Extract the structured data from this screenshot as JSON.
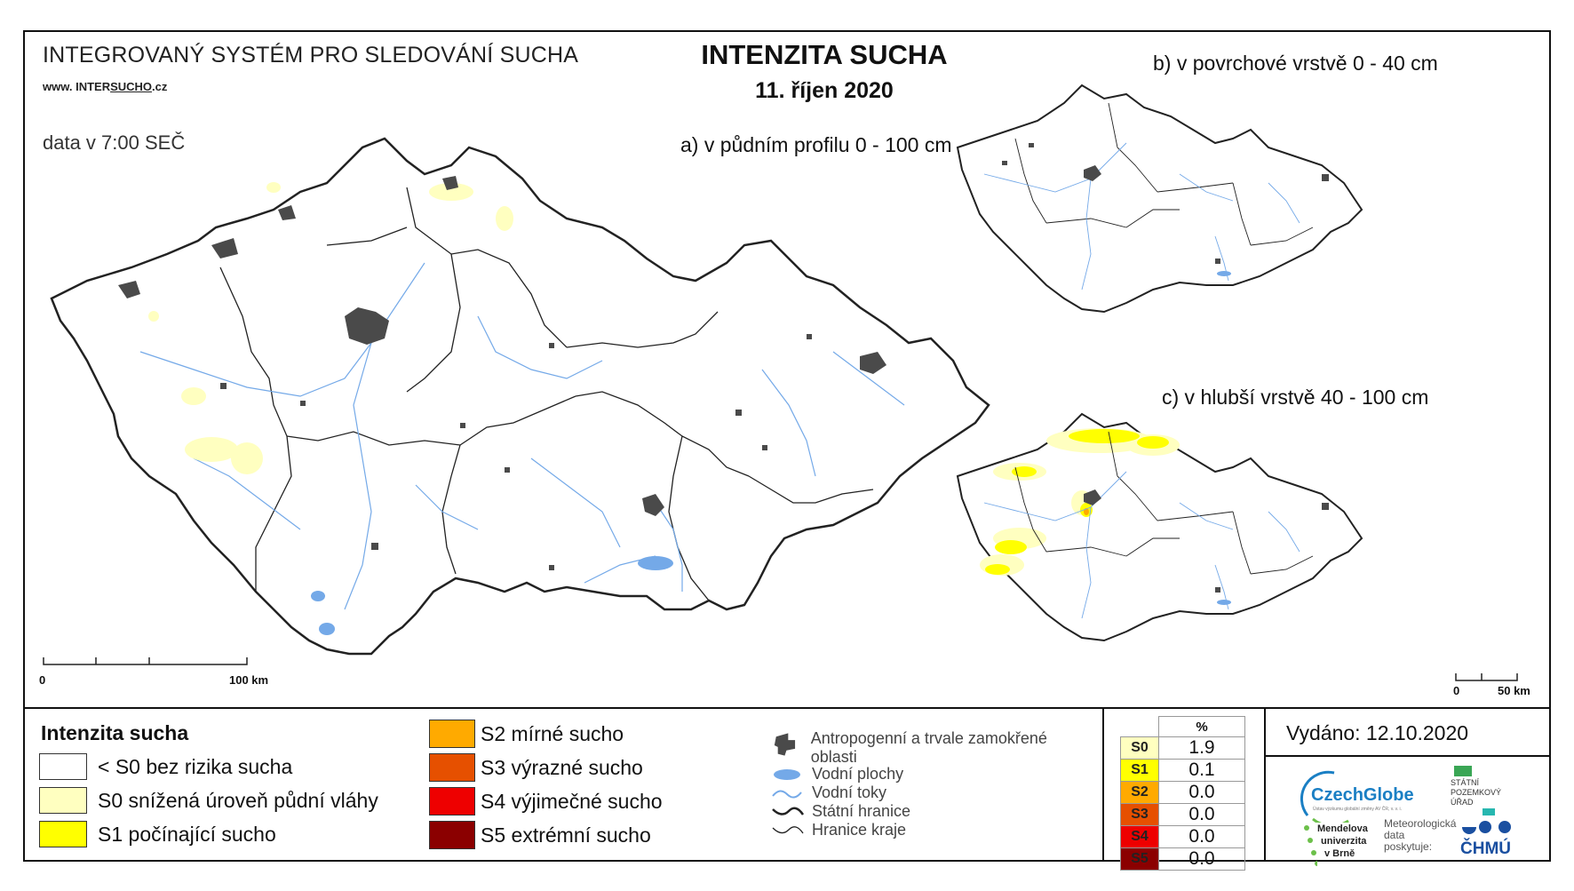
{
  "header": {
    "system_title": "INTEGROVANÝ SYSTÉM PRO SLEDOVÁNÍ SUCHA",
    "website_prefix": "www. INTER",
    "website_underlined": "SUCHO",
    "website_suffix": ".cz",
    "time_note": "data v 7:00 SEČ",
    "title": "INTENZITA SUCHA",
    "date": "11. říjen 2020"
  },
  "maps": {
    "a_label": "a) v půdním profilu 0 - 100 cm",
    "b_label": "b) v povrchové vrstvě 0 - 40 cm",
    "c_label": "c) v hlubší vrstvě 40 - 100 cm",
    "scale_a": {
      "start": "0",
      "end": "100 km"
    },
    "scale_c": {
      "start": "0",
      "end": "50 km"
    }
  },
  "legend": {
    "title": "Intenzita sucha",
    "classes": [
      {
        "label": "< S0 bez rizika sucha",
        "color": "#ffffff"
      },
      {
        "label": "S0 snížená úroveň půdní vláhy",
        "color": "#ffffc0"
      },
      {
        "label": "S1 počínající sucho",
        "color": "#ffff00"
      },
      {
        "label": "S2 mírné sucho",
        "color": "#ffaa00"
      },
      {
        "label": "S3 výrazné sucho",
        "color": "#e65000"
      },
      {
        "label": "S4 výjimečné sucho",
        "color": "#ee0000"
      },
      {
        "label": "S5 extrémní sucho",
        "color": "#8b0000"
      }
    ],
    "symbols": [
      {
        "label": "Antropogenní a trvale zamokřené oblasti",
        "icon": "urban-area-icon"
      },
      {
        "label": "Vodní plochy",
        "icon": "water-body-icon"
      },
      {
        "label": "Vodní toky",
        "icon": "river-icon"
      },
      {
        "label": "Státní hranice",
        "icon": "state-border-icon"
      },
      {
        "label": "Hranice kraje",
        "icon": "region-border-icon"
      }
    ]
  },
  "percent_table": {
    "header": "%",
    "rows": [
      {
        "code": "S0",
        "value": "1.9",
        "color": "#ffffc0"
      },
      {
        "code": "S1",
        "value": "0.1",
        "color": "#ffff00"
      },
      {
        "code": "S2",
        "value": "0.0",
        "color": "#ffaa00"
      },
      {
        "code": "S3",
        "value": "0.0",
        "color": "#e65000"
      },
      {
        "code": "S4",
        "value": "0.0",
        "color": "#ee0000"
      },
      {
        "code": "S5",
        "value": "0.0",
        "color": "#8b0000"
      }
    ]
  },
  "issued": "Vydáno: 12.10.2020",
  "logos": {
    "czechglobe": "CzechGlobe",
    "czechglobe_sub": "Ústav výzkumu globální změny AV ČR, v. v. i.",
    "spu_line1": "STÁTNÍ",
    "spu_line2": "POZEMKOVÝ",
    "spu_line3": "ÚŘAD",
    "mendel_line1": "Mendelova",
    "mendel_line2": "univerzita",
    "mendel_line3": "v Brně",
    "met_line1": "Meteorologická",
    "met_line2": "data",
    "met_line3": "poskytuje:",
    "chmu": "ČHMÚ"
  },
  "colors": {
    "border": "#111111",
    "river": "#74a9e8",
    "urban": "#4a4a4a",
    "s0_patch": "#ffffc0",
    "s1_patch": "#ffff00"
  }
}
